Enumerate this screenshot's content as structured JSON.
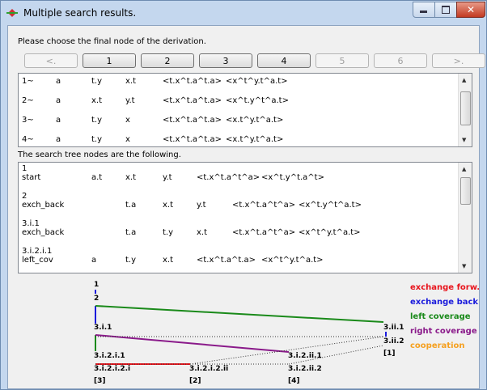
{
  "window": {
    "title": "Multiple search results."
  },
  "prompt": "Please choose the final node of the derivation.",
  "buttons": [
    {
      "label": "<.",
      "enabled": false
    },
    {
      "label": "1",
      "enabled": true
    },
    {
      "label": "2",
      "enabled": true
    },
    {
      "label": "3",
      "enabled": true
    },
    {
      "label": "4",
      "enabled": true
    },
    {
      "label": "5",
      "enabled": false
    },
    {
      "label": "6",
      "enabled": false
    },
    {
      "label": ">.",
      "enabled": false
    }
  ],
  "results": [
    [
      "1~",
      "a",
      "t.y",
      "x.t",
      "<t.x^t.a^t.a>",
      "<x^t^y.t^a.t>"
    ],
    [
      "2~",
      "a",
      "x.t",
      "y.t",
      "<t.x^t.a^t.a>",
      "<x^t.y^t^a.t>"
    ],
    [
      "3~",
      "a",
      "t.y",
      "x",
      "<t.x^t.a^t.a>",
      "<x.t^y.t^a.t>"
    ],
    [
      "4~",
      "a",
      "t.y",
      "x",
      "<t.x^t.a^t.a>",
      "<x.t^y.t^a.t>"
    ]
  ],
  "tree_label": "The search tree nodes are the following.",
  "tree_entries": [
    {
      "id": "1",
      "cells": [
        "start",
        "a.t",
        "x.t",
        "y.t",
        "<t.x^t.a^t^a>",
        "<x^t.y^t.a^t>"
      ]
    },
    {
      "id": "2",
      "cells": [
        "exch_back",
        "t.a",
        "x.t",
        "y.t",
        "<t.x^t.a^t^a>",
        "<x^t.y^t^a.t>"
      ]
    },
    {
      "id": "3.i.1",
      "cells": [
        "exch_back",
        "t.a",
        "t.y",
        "x.t",
        "<t.x^t.a^t^a>",
        "<x^t^y.t^a.t>"
      ]
    },
    {
      "id": "3.i.2.i.1",
      "cells": [
        "left_cov",
        "a",
        "t.y",
        "x.t",
        "<t.x^t.a^t.a>",
        "<x^t^y.t^a.t>"
      ]
    }
  ],
  "diagram": {
    "nodes": [
      "1",
      "2",
      "3.i.1",
      "3.i.2.i.1",
      "3.i.2.i.2.i",
      "[3]",
      "3.i.2.i.2.ii",
      "[2]",
      "3.i.2.ii.1",
      "3.i.2.ii.2",
      "[4]",
      "3.ii.1",
      "3.ii.2",
      "[1]"
    ],
    "legend": [
      {
        "name": "exchange forw.",
        "color": "#e8141c"
      },
      {
        "name": "exchange back",
        "color": "#1a1adc"
      },
      {
        "name": "left coverage",
        "color": "#1a8a1a"
      },
      {
        "name": "right coverage",
        "color": "#8a1a8a"
      },
      {
        "name": "cooperation",
        "color": "#f5a020"
      }
    ]
  }
}
